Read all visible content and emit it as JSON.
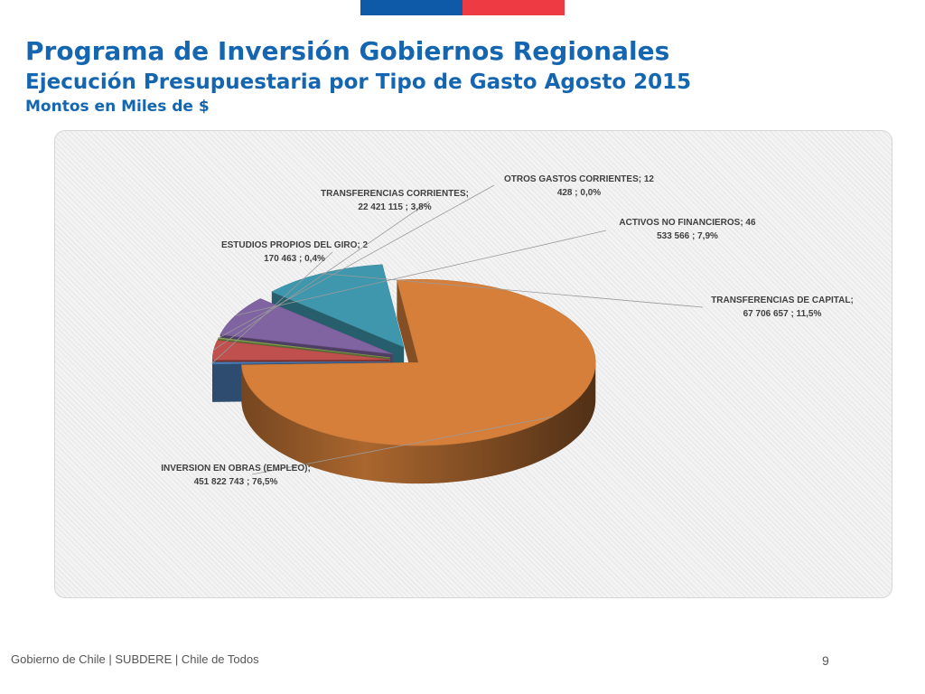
{
  "header": {
    "title": "Programa de Inversión Gobiernos Regionales",
    "subtitle": "Ejecución Presupuestaria por Tipo de Gasto Agosto 2015",
    "units": "Montos en Miles de $"
  },
  "flag": {
    "blue": "#0f5aa8",
    "red": "#ee3a43"
  },
  "chart_data": {
    "type": "pie",
    "style": "3d-exploded",
    "title": "Ejecución Presupuestaria por Tipo de Gasto Agosto 2015",
    "units": "Miles de $",
    "slices": [
      {
        "name": "INVERSION EN OBRAS (EMPLEO)",
        "value": 451822743,
        "percent": 76.5,
        "color": "#d57f3a",
        "label_lines": [
          "INVERSION EN OBRAS (EMPLEO);",
          "451 822 743 ; 76,5%"
        ]
      },
      {
        "name": "ESTUDIOS PROPIOS DEL GIRO",
        "value": 2170463,
        "percent": 0.4,
        "color": "#4a7ab5",
        "label_lines": [
          "ESTUDIOS PROPIOS DEL GIRO;  2",
          "170 463 ; 0,4%"
        ]
      },
      {
        "name": "TRANSFERENCIAS CORRIENTES",
        "value": 22421115,
        "percent": 3.8,
        "color": "#c0504d",
        "label_lines": [
          "TRANSFERENCIAS CORRIENTES;",
          "22 421 115 ; 3,8%"
        ]
      },
      {
        "name": "OTROS GASTOS CORRIENTES",
        "value": 12428,
        "percent": 0.0,
        "color": "#8fad55",
        "label_lines": [
          "OTROS GASTOS CORRIENTES;  12",
          "428 ; 0,0%"
        ]
      },
      {
        "name": "ACTIVOS NO FINANCIEROS",
        "value": 46533566,
        "percent": 7.9,
        "color": "#8064a2",
        "label_lines": [
          "ACTIVOS NO FINANCIEROS;  46",
          "533 566 ; 7,9%"
        ]
      },
      {
        "name": "TRANSFERENCIAS DE CAPITAL",
        "value": 67706657,
        "percent": 11.5,
        "color": "#3f97ad",
        "label_lines": [
          "TRANSFERENCIAS DE CAPITAL;",
          "67 706 657 ; 11,5%"
        ]
      }
    ]
  },
  "footer": {
    "text": "Gobierno de Chile | SUBDERE | Chile de Todos",
    "page_number": "9"
  }
}
